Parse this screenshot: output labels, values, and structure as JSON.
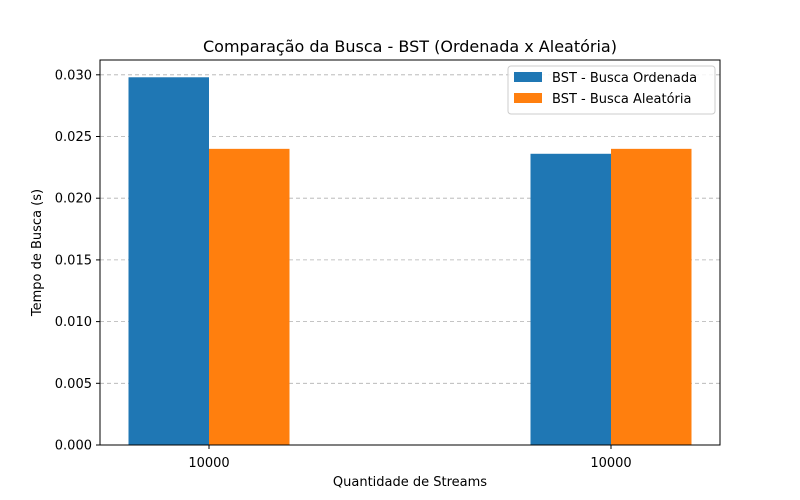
{
  "chart_data": {
    "type": "bar",
    "title": "Comparação da Busca - BST (Ordenada x Aleatória)",
    "xlabel": "Quantidade de Streams",
    "ylabel": "Tempo de Busca (s)",
    "categories": [
      "10000",
      "10000"
    ],
    "series": [
      {
        "name": "BST - Busca Ordenada",
        "color": "#1f77b4",
        "values": [
          0.0298,
          0.0236
        ]
      },
      {
        "name": "BST - Busca Aleatória",
        "color": "#ff7f0e",
        "values": [
          0.024,
          0.024
        ]
      }
    ],
    "ylim": [
      0,
      0.0312
    ],
    "yticks": [
      "0.000",
      "0.005",
      "0.010",
      "0.015",
      "0.020",
      "0.025",
      "0.030"
    ],
    "grid": "y-dashed",
    "legend": "top-right"
  }
}
